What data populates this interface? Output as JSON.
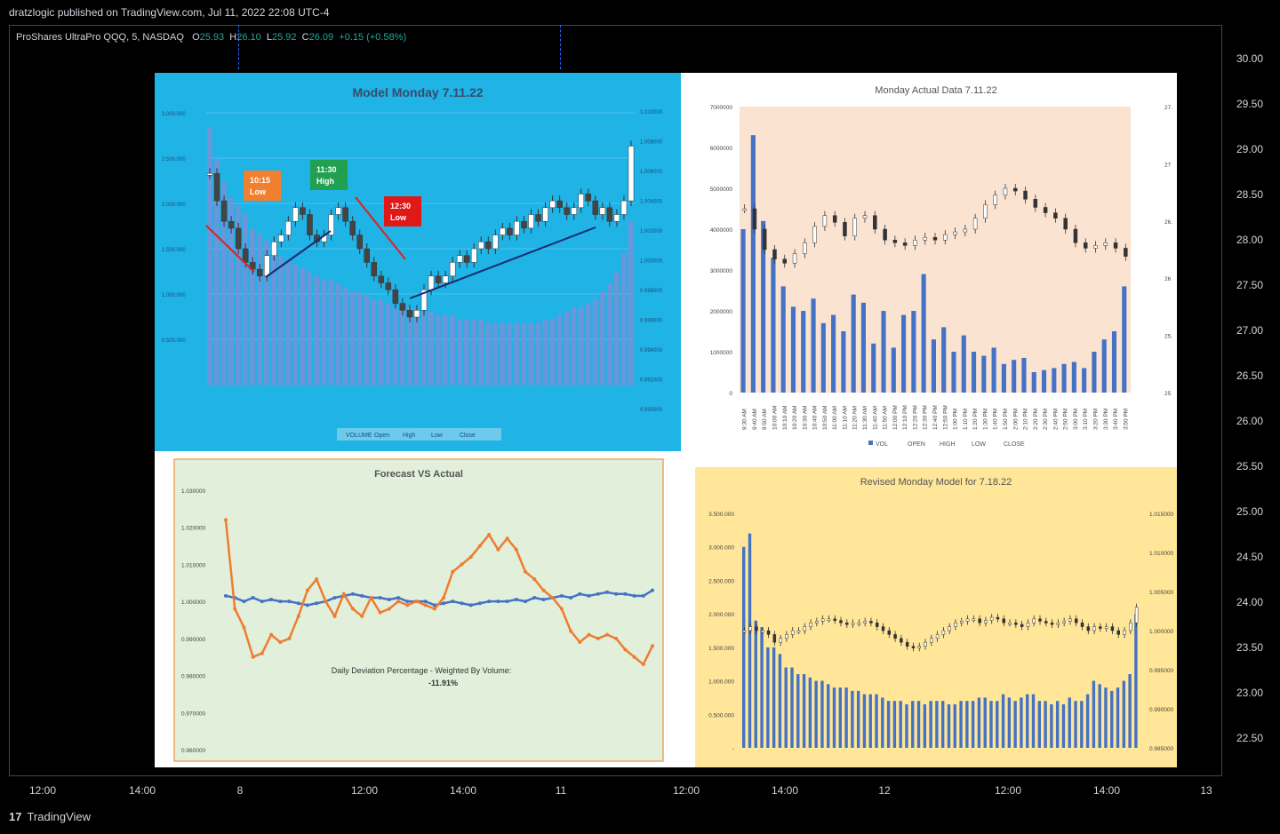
{
  "header": {
    "published": "dratzlogic published on TradingView.com, Jul 11, 2022 22:08 UTC-4",
    "symbol": "ProShares UltraPro QQQ, 5, NASDAQ",
    "open_label": "O",
    "open": "25.93",
    "high_label": "H",
    "high": "26.10",
    "low_label": "L",
    "low": "25.92",
    "close_label": "C",
    "close": "26.09",
    "change": "+0.15 (+0.58%)"
  },
  "price_axis": [
    "30.00",
    "29.50",
    "29.00",
    "28.50",
    "28.00",
    "27.50",
    "27.00",
    "26.50",
    "26.00",
    "25.50",
    "25.00",
    "24.50",
    "24.00",
    "23.50",
    "23.00",
    "22.50"
  ],
  "time_axis": [
    "12:00",
    "14:00",
    "8",
    "12:00",
    "14:00",
    "11",
    "12:00",
    "14:00",
    "12",
    "12:00",
    "14:00",
    "13"
  ],
  "footer": {
    "brand": "TradingView",
    "logo": "17"
  },
  "colors": {
    "accent": "#2962ff",
    "up": "#26a69a",
    "background": "#000000"
  },
  "chart_data": [
    {
      "type": "bar",
      "title": "Model Monday 7.11.22",
      "legend": [
        "VOLUME",
        "Open",
        "High",
        "Low",
        "Close"
      ],
      "y_left_ticks": [
        "3.000.000",
        "2.500.000",
        "2.000.000",
        "1.500.000",
        "1.000.000",
        "0.500.000"
      ],
      "y_right_ticks": [
        "1.010000",
        "1.008000",
        "1.006000",
        "1.004000",
        "1.002000",
        "1.000000",
        "0.998000",
        "0.996000",
        "0.994000",
        "0.992000",
        "0.990000"
      ],
      "annotations": [
        {
          "time": "10:15",
          "label": "Low"
        },
        {
          "time": "11:30",
          "label": "High"
        },
        {
          "time": "12:30",
          "label": "Low"
        }
      ],
      "volume": [
        3.3,
        2.9,
        2.6,
        2.4,
        2.3,
        2.2,
        2.0,
        1.95,
        1.85,
        1.7,
        1.65,
        1.6,
        1.55,
        1.5,
        1.45,
        1.4,
        1.35,
        1.35,
        1.3,
        1.25,
        1.2,
        1.2,
        1.15,
        1.1,
        1.1,
        1.05,
        1.0,
        1.0,
        1.0,
        0.95,
        0.95,
        0.95,
        0.9,
        0.9,
        0.9,
        0.85,
        0.85,
        0.85,
        0.85,
        0.8,
        0.8,
        0.8,
        0.8,
        0.8,
        0.8,
        0.8,
        0.8,
        0.85,
        0.85,
        0.9,
        0.95,
        1.0,
        1.0,
        1.05,
        1.1,
        1.2,
        1.3,
        1.45,
        1.7,
        2.1
      ],
      "close": [
        1.0055,
        1.0035,
        1.002,
        1.0015,
        1.0,
        0.999,
        0.9985,
        0.998,
        0.9995,
        1.0005,
        1.001,
        1.002,
        1.003,
        1.0025,
        1.001,
        1.0005,
        1.001,
        1.0025,
        1.003,
        1.002,
        1.001,
        1.0,
        0.999,
        0.998,
        0.9975,
        0.997,
        0.996,
        0.9955,
        0.995,
        0.9955,
        0.997,
        0.998,
        0.9975,
        0.998,
        0.999,
        0.9995,
        0.999,
        1.0,
        1.0005,
        1.0,
        1.001,
        1.0015,
        1.001,
        1.002,
        1.0015,
        1.0025,
        1.002,
        1.003,
        1.0035,
        1.003,
        1.0025,
        1.003,
        1.004,
        1.0035,
        1.0025,
        1.003,
        1.002,
        1.0025,
        1.0035,
        1.0075
      ]
    },
    {
      "type": "bar",
      "title": "Monday Actual Data 7.11.22",
      "legend": [
        "VOL",
        "OPEN",
        "HIGH",
        "LOW",
        "CLOSE"
      ],
      "y_left_ticks": [
        "7000000",
        "6000000",
        "5000000",
        "4000000",
        "3000000",
        "2000000",
        "1000000",
        "0"
      ],
      "y_right_ticks": [
        "27.",
        "27",
        "26.",
        "26",
        "25.",
        "25"
      ],
      "x_labels": [
        "9:30 AM",
        "9:40 AM",
        "9:50 AM",
        "10:00 AM",
        "10:10 AM",
        "10:20 AM",
        "10:30 AM",
        "10:40 AM",
        "10:50 AM",
        "11:00 AM",
        "11:10 AM",
        "11:20 AM",
        "11:30 AM",
        "11:40 AM",
        "11:50 AM",
        "12:00 PM",
        "12:10 PM",
        "12:20 PM",
        "12:30 PM",
        "12:40 PM",
        "12:50 PM",
        "1:00 PM",
        "1:10 PM",
        "1:20 PM",
        "1:30 PM",
        "1:40 PM",
        "1:50 PM",
        "2:00 PM",
        "2:10 PM",
        "2:20 PM",
        "2:30 PM",
        "2:40 PM",
        "2:50 PM",
        "3:00 PM",
        "3:10 PM",
        "3:20 PM",
        "3:30 PM",
        "3:40 PM",
        "3:50 PM"
      ],
      "volume": [
        4000000,
        6300000,
        4200000,
        3300000,
        2600000,
        2100000,
        2000000,
        2300000,
        1700000,
        1900000,
        1500000,
        2400000,
        2200000,
        1200000,
        2000000,
        1100000,
        1900000,
        2000000,
        2900000,
        1300000,
        1600000,
        1000000,
        1400000,
        1000000,
        900000,
        1100000,
        700000,
        800000,
        850000,
        500000,
        550000,
        600000,
        700000,
        750000,
        600000,
        1000000,
        1300000,
        1500000,
        2600000
      ],
      "close": [
        26.35,
        26.2,
        26.05,
        25.98,
        25.95,
        26.02,
        26.1,
        26.22,
        26.3,
        26.25,
        26.15,
        26.28,
        26.3,
        26.2,
        26.12,
        26.1,
        26.08,
        26.12,
        26.14,
        26.12,
        26.16,
        26.18,
        26.2,
        26.28,
        26.38,
        26.45,
        26.5,
        26.48,
        26.42,
        26.36,
        26.32,
        26.28,
        26.2,
        26.1,
        26.06,
        26.08,
        26.1,
        26.06,
        26.0
      ]
    },
    {
      "type": "line",
      "title": "Forecast VS Actual",
      "y_ticks": [
        "1.030000",
        "1.020000",
        "1.010000",
        "1.000000",
        "0.990000",
        "0.980000",
        "0.970000",
        "0.960000"
      ],
      "annotation": "Daily Deviation Percentage - Weighted By Volume:",
      "annotation_value": "-11.91%",
      "series": [
        {
          "values": [
            1.0015,
            1.001,
            1.0,
            1.001,
            1.0,
            1.0005,
            1.0,
            1.0,
            0.9995,
            0.999,
            0.9995,
            1.0,
            1.001,
            1.0015,
            1.002,
            1.0015,
            1.001,
            1.001,
            1.0005,
            1.001,
            1.0,
            1.0,
            1.0,
            0.999,
            0.9995,
            1.0,
            0.9995,
            0.999,
            0.9995,
            1.0,
            1.0,
            1.0,
            1.0005,
            1.0,
            1.001,
            1.0005,
            1.001,
            1.0015,
            1.001,
            1.002,
            1.0015,
            1.002,
            1.0025,
            1.002,
            1.002,
            1.0015,
            1.0015,
            1.003
          ]
        },
        {
          "values": [
            1.022,
            0.998,
            0.993,
            0.985,
            0.986,
            0.991,
            0.989,
            0.99,
            0.996,
            1.003,
            1.006,
            1.0,
            0.996,
            1.002,
            0.998,
            0.996,
            1.001,
            0.997,
            0.998,
            1.0,
            0.999,
            1.0,
            0.999,
            0.998,
            1.001,
            1.008,
            1.01,
            1.012,
            1.015,
            1.018,
            1.014,
            1.017,
            1.014,
            1.008,
            1.006,
            1.003,
            1.001,
            0.998,
            0.992,
            0.989,
            0.991,
            0.99,
            0.991,
            0.99,
            0.987,
            0.985,
            0.983,
            0.988
          ]
        }
      ]
    },
    {
      "type": "bar",
      "title": "Revised Monday Model for 7.18.22",
      "y_left_ticks": [
        "3.500.000",
        "3.000.000",
        "2.500.000",
        "2.000.000",
        "1.500.000",
        "1.000.000",
        "0.500.000",
        "-"
      ],
      "y_right_ticks": [
        "1.015000",
        "1.010000",
        "1.005000",
        "1.000000",
        "0.995000",
        "0.990000",
        "0.985000"
      ],
      "volume": [
        3.0,
        3.2,
        1.9,
        1.8,
        1.5,
        1.5,
        1.4,
        1.2,
        1.2,
        1.1,
        1.1,
        1.05,
        1.0,
        1.0,
        0.95,
        0.9,
        0.9,
        0.9,
        0.85,
        0.85,
        0.8,
        0.8,
        0.8,
        0.75,
        0.7,
        0.7,
        0.7,
        0.65,
        0.7,
        0.7,
        0.65,
        0.7,
        0.7,
        0.7,
        0.65,
        0.65,
        0.7,
        0.7,
        0.7,
        0.75,
        0.75,
        0.7,
        0.7,
        0.8,
        0.75,
        0.7,
        0.75,
        0.8,
        0.8,
        0.7,
        0.7,
        0.65,
        0.7,
        0.65,
        0.75,
        0.7,
        0.7,
        0.8,
        1.0,
        0.95,
        0.9,
        0.85,
        0.9,
        1.0,
        1.1,
        2.0
      ],
      "close": [
        1.0,
        1.0005,
        1.0,
        1.0,
        0.9995,
        0.9985,
        0.999,
        0.9995,
        1.0,
        1.0,
        1.0005,
        1.001,
        1.0012,
        1.0015,
        1.0015,
        1.0013,
        1.001,
        1.0008,
        1.001,
        1.001,
        1.0012,
        1.001,
        1.0005,
        1.0,
        0.9995,
        0.999,
        0.9985,
        0.998,
        0.9978,
        0.998,
        0.9985,
        0.999,
        0.9995,
        1.0,
        1.0005,
        1.001,
        1.0012,
        1.0015,
        1.0015,
        1.001,
        1.0013,
        1.0017,
        1.0015,
        1.001,
        1.001,
        1.0008,
        1.0005,
        1.001,
        1.0015,
        1.0012,
        1.001,
        1.0008,
        1.001,
        1.0012,
        1.0015,
        1.001,
        1.0005,
        1.0,
        1.0005,
        1.0003,
        1.0005,
        1.0,
        0.9995,
        1.0,
        1.001,
        1.003
      ]
    }
  ]
}
